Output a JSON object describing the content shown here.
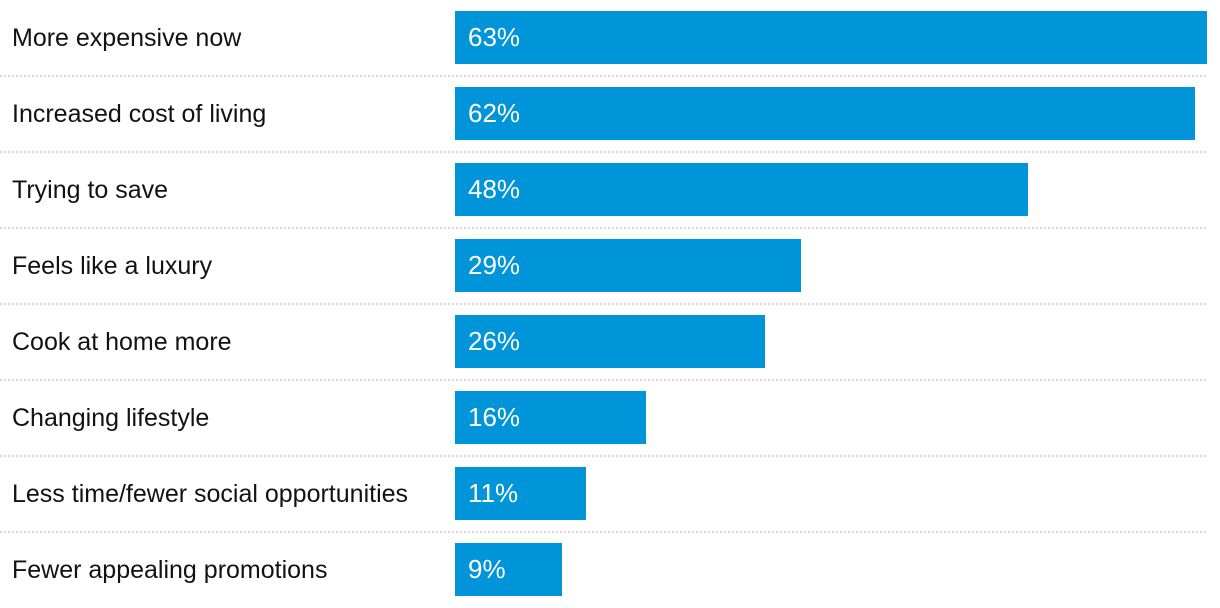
{
  "chart_data": {
    "type": "bar",
    "orientation": "horizontal",
    "title": "",
    "xlabel": "",
    "ylabel": "",
    "categories": [
      "More expensive now",
      "Increased cost of living",
      "Trying to save",
      "Feels like a luxury",
      "Cook at home more",
      "Changing lifestyle",
      "Less time/fewer social opportunities",
      "Fewer appealing promotions"
    ],
    "values": [
      63,
      62,
      48,
      29,
      26,
      16,
      11,
      9
    ],
    "value_suffix": "%",
    "xlim": [
      0,
      63
    ],
    "grid": "dotted-row-separators",
    "legend": "none",
    "colors": {
      "bar": "#0094d8",
      "value_label": "#ffffff",
      "category_label": "#121212",
      "separator": "#d9d9d9",
      "background": "#ffffff"
    }
  }
}
